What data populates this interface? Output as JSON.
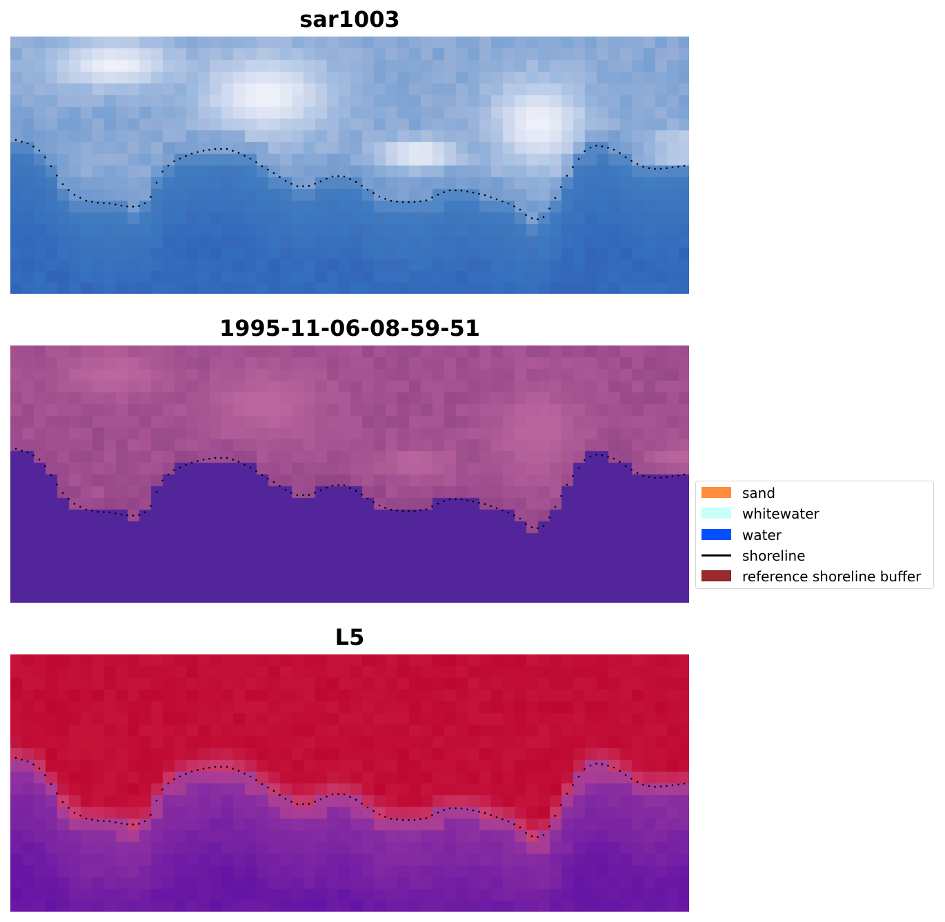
{
  "panels": [
    {
      "title": "sar1003",
      "style": "sar"
    },
    {
      "title": "1995-11-06-08-59-51",
      "style": "classified"
    },
    {
      "title": "L5",
      "style": "ndwi"
    }
  ],
  "legend": {
    "items": [
      {
        "label": "sand",
        "kind": "patch",
        "color": "#ff8c3c"
      },
      {
        "label": "whitewater",
        "kind": "patch",
        "color": "#c8fffa"
      },
      {
        "label": "water",
        "kind": "patch",
        "color": "#0050ff"
      },
      {
        "label": "shoreline",
        "kind": "line",
        "color": "#000000"
      },
      {
        "label": "reference shoreline buffer",
        "kind": "patch",
        "color": "#9b2a2a"
      }
    ]
  },
  "colors": {
    "water_class": "#52269a",
    "shoreline_points": "#000000"
  }
}
